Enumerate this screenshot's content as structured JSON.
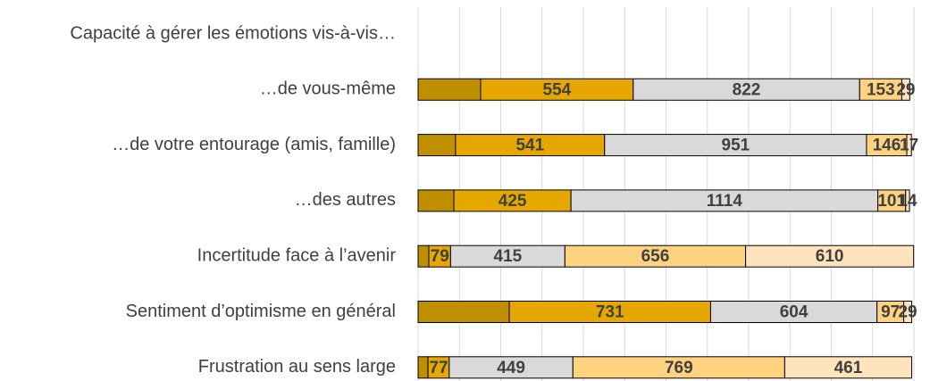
{
  "chart_data": {
    "type": "stacked_barh",
    "categories": [
      "Capacité à gérer les émotions vis-à-vis…",
      "…de vous-même",
      "…de votre entourage (amis, famille)",
      "…des autres",
      "Incertitude face à l’avenir",
      "Sentiment d’optimisme en général",
      "Frustration au sens large"
    ],
    "series": [
      {
        "color": "#bf8f00",
        "show_labels": false,
        "values": [
          null,
          227,
          136,
          130,
          39,
          331,
          36
        ]
      },
      {
        "color": "#e6a800",
        "show_labels": true,
        "values": [
          null,
          554,
          541,
          425,
          79,
          731,
          77
        ]
      },
      {
        "color": "#d9d9d9",
        "show_labels": true,
        "values": [
          null,
          822,
          951,
          1114,
          415,
          604,
          449
        ]
      },
      {
        "color": "#ffd27f",
        "show_labels": true,
        "values": [
          null,
          153,
          146,
          101,
          656,
          97,
          769
        ]
      },
      {
        "color": "#ffe3bd",
        "show_labels": true,
        "values": [
          null,
          29,
          17,
          14,
          610,
          29,
          461
        ]
      }
    ],
    "xlim": [
      0,
      1800
    ],
    "xticks": [
      0,
      150,
      300,
      450,
      600,
      750,
      900,
      1050,
      1200,
      1350,
      1500,
      1650,
      1800
    ],
    "grid": true
  }
}
